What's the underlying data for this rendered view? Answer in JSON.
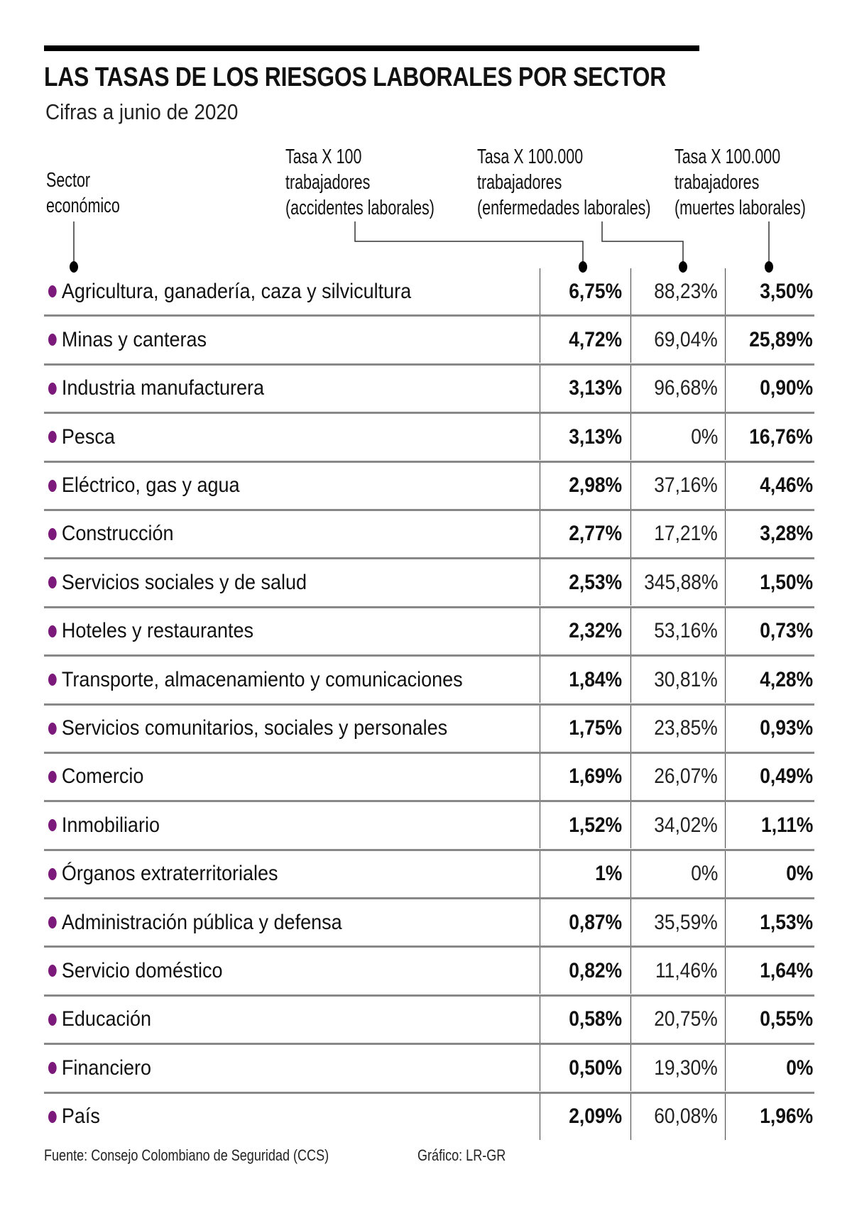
{
  "title": "LAS TASAS DE LOS RIESGOS LABORALES POR SECTOR",
  "subtitle": "Cifras a junio de 2020",
  "headers": {
    "sector": [
      "Sector",
      "económico"
    ],
    "col1": [
      "Tasa X 100",
      "trabajadores",
      "(accidentes laborales)"
    ],
    "col2": [
      "Tasa X 100.000",
      "trabajadores",
      "(enfermedades laborales)"
    ],
    "col3": [
      "Tasa X 100.000",
      "trabajadores",
      "(muertes laborales)"
    ]
  },
  "colors": {
    "bullet": "#7b1a7b",
    "rule": "#888888"
  },
  "rows": [
    {
      "sector": "Agricultura, ganadería, caza y silvicultura",
      "accidentes": "6,75%",
      "enfermedades": "88,23%",
      "muertes": "3,50%"
    },
    {
      "sector": "Minas y canteras",
      "accidentes": "4,72%",
      "enfermedades": "69,04%",
      "muertes": "25,89%"
    },
    {
      "sector": "Industria manufacturera",
      "accidentes": "3,13%",
      "enfermedades": "96,68%",
      "muertes": "0,90%"
    },
    {
      "sector": "Pesca",
      "accidentes": "3,13%",
      "enfermedades": "0%",
      "muertes": "16,76%"
    },
    {
      "sector": "Eléctrico, gas y agua",
      "accidentes": "2,98%",
      "enfermedades": "37,16%",
      "muertes": "4,46%"
    },
    {
      "sector": "Construcción",
      "accidentes": "2,77%",
      "enfermedades": "17,21%",
      "muertes": "3,28%"
    },
    {
      "sector": "Servicios sociales y de salud",
      "accidentes": "2,53%",
      "enfermedades": "345,88%",
      "muertes": "1,50%"
    },
    {
      "sector": "Hoteles y restaurantes",
      "accidentes": "2,32%",
      "enfermedades": "53,16%",
      "muertes": "0,73%"
    },
    {
      "sector": "Transporte, almacenamiento y comunicaciones",
      "accidentes": "1,84%",
      "enfermedades": "30,81%",
      "muertes": "4,28%"
    },
    {
      "sector": "Servicios comunitarios, sociales y personales",
      "accidentes": "1,75%",
      "enfermedades": "23,85%",
      "muertes": "0,93%"
    },
    {
      "sector": "Comercio",
      "accidentes": "1,69%",
      "enfermedades": "26,07%",
      "muertes": "0,49%"
    },
    {
      "sector": "Inmobiliario",
      "accidentes": "1,52%",
      "enfermedades": "34,02%",
      "muertes": "1,11%"
    },
    {
      "sector": "Órganos extraterritoriales",
      "accidentes": "1%",
      "enfermedades": "0%",
      "muertes": "0%"
    },
    {
      "sector": "Administración pública y defensa",
      "accidentes": "0,87%",
      "enfermedades": "35,59%",
      "muertes": "1,53%"
    },
    {
      "sector": "Servicio doméstico",
      "accidentes": "0,82%",
      "enfermedades": "11,46%",
      "muertes": "1,64%"
    },
    {
      "sector": "Educación",
      "accidentes": "0,58%",
      "enfermedades": "20,75%",
      "muertes": "0,55%"
    },
    {
      "sector": "Financiero",
      "accidentes": "0,50%",
      "enfermedades": "19,30%",
      "muertes": "0%"
    },
    {
      "sector": "País",
      "accidentes": "2,09%",
      "enfermedades": "60,08%",
      "muertes": "1,96%"
    }
  ],
  "footer": {
    "source": "Fuente: Consejo Colombiano de Seguridad (CCS)",
    "credit": "Gráfico: LR-GR"
  }
}
